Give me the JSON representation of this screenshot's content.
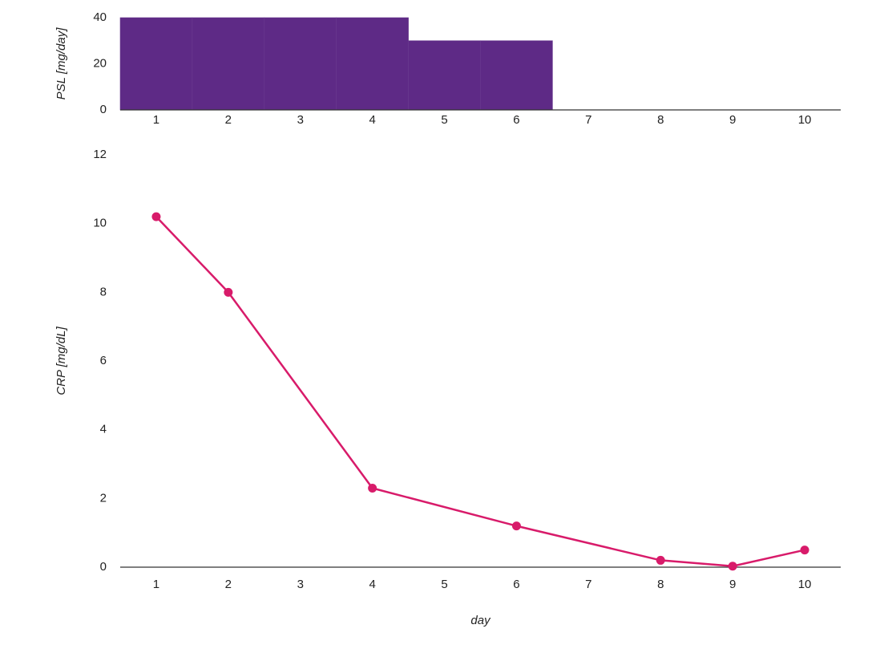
{
  "chart_data": [
    {
      "type": "bar",
      "y_label": "PSL [mg/day]",
      "categories": [
        "1",
        "2",
        "3",
        "4",
        "5",
        "6",
        "7",
        "8",
        "9",
        "10"
      ],
      "values": [
        40,
        40,
        40,
        40,
        30,
        30,
        0,
        0,
        0,
        0
      ],
      "color": "#5e2a86",
      "ylim": [
        0,
        40
      ],
      "yticks": [
        0,
        20,
        40
      ]
    },
    {
      "type": "line",
      "y_label": "CRP [mg/dL]",
      "x_label": "day",
      "x": [
        1,
        2,
        4,
        6,
        8,
        9,
        10
      ],
      "values": [
        10.2,
        8,
        2.3,
        1.2,
        0.2,
        0.03,
        0.5
      ],
      "color": "#d81b6a",
      "xlim": [
        0.5,
        10.5
      ],
      "xticks": [
        1,
        2,
        3,
        4,
        5,
        6,
        7,
        8,
        9,
        10
      ],
      "ylim": [
        0,
        12
      ],
      "yticks": [
        0,
        2,
        4,
        6,
        8,
        10,
        12
      ]
    }
  ]
}
